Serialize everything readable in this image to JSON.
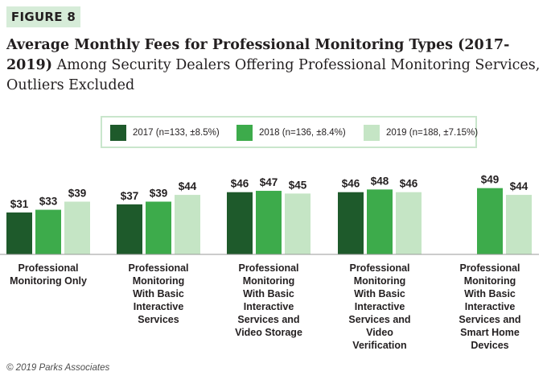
{
  "figure_badge": "FIGURE 8",
  "title_bold": "Average Monthly Fees for Professional Monitoring Types (2017-2019)",
  "title_rest": "Among Security Dealers Offering Professional Monitoring Services, Outliers Excluded",
  "footer": "© 2019 Parks Associates",
  "colors": {
    "2017": "#1e5a2b",
    "2018": "#3dab4b",
    "2019": "#c5e5c5",
    "baseline": "#9a9a9a"
  },
  "chart_data": {
    "type": "bar",
    "categories": [
      "Professional Monitoring Only",
      "Professional Monitoring With Basic Interactive Services",
      "Professional Monitoring With Basic Interactive Services and Video Storage",
      "Professional Monitoring With Basic Interactive Services and Video Verification",
      "Professional Monitoring With Basic Interactive Services and Smart Home Devices"
    ],
    "category_lines": [
      [
        "Professional",
        "Monitoring Only"
      ],
      [
        "Professional",
        "Monitoring",
        "With Basic",
        "Interactive",
        "Services"
      ],
      [
        "Professional",
        "Monitoring",
        "With Basic",
        "Interactive",
        "Services and",
        "Video Storage"
      ],
      [
        "Professional",
        "Monitoring",
        "With Basic",
        "Interactive",
        "Services and",
        "Video",
        "Verification"
      ],
      [
        "Professional",
        "Monitoring",
        "With Basic",
        "Interactive",
        "Services and",
        "Smart Home",
        "Devices"
      ]
    ],
    "series": [
      {
        "name": "2017 (n=133, ±8.5%)",
        "values": [
          31,
          37,
          46,
          46,
          null
        ],
        "labels": [
          "$31",
          "$37",
          "$46",
          "$46",
          ""
        ]
      },
      {
        "name": "2018 (n=136, ±8.4%)",
        "values": [
          33,
          39,
          47,
          48,
          49
        ],
        "labels": [
          "$33",
          "$39",
          "$47",
          "$48",
          "$49"
        ]
      },
      {
        "name": "2019 (n=188, ±7.15%)",
        "values": [
          39,
          44,
          45,
          46,
          44
        ],
        "labels": [
          "$39",
          "$44",
          "$45",
          "$46",
          "$44"
        ]
      }
    ],
    "ylim": [
      0,
      50
    ],
    "grid": false,
    "legend_position": "top"
  }
}
